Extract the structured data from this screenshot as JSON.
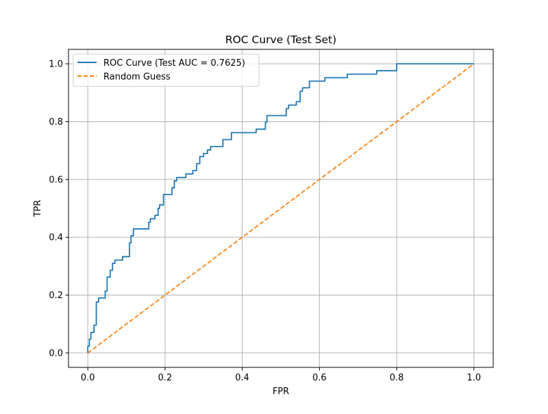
{
  "chart_data": {
    "type": "line",
    "title": "ROC Curve (Test Set)",
    "xlabel": "FPR",
    "ylabel": "TPR",
    "xlim": [
      -0.05,
      1.05
    ],
    "ylim": [
      -0.05,
      1.05
    ],
    "grid": true,
    "legend_position": "upper left",
    "x_ticks": [
      0.0,
      0.2,
      0.4,
      0.6,
      0.8,
      1.0
    ],
    "y_ticks": [
      0.0,
      0.2,
      0.4,
      0.6,
      0.8,
      1.0
    ],
    "x_tick_labels": [
      "0.0",
      "0.2",
      "0.4",
      "0.6",
      "0.8",
      "1.0"
    ],
    "y_tick_labels": [
      "0.0",
      "0.2",
      "0.4",
      "0.6",
      "0.8",
      "1.0"
    ],
    "series": [
      {
        "name": "ROC Curve (Test AUC = 0.7625)",
        "color": "#1f77b4",
        "style": "solid",
        "x": [
          0.0,
          0.0,
          0.004,
          0.004,
          0.008,
          0.008,
          0.016,
          0.016,
          0.022,
          0.022,
          0.028,
          0.028,
          0.045,
          0.045,
          0.05,
          0.05,
          0.058,
          0.058,
          0.064,
          0.064,
          0.07,
          0.07,
          0.09,
          0.09,
          0.108,
          0.108,
          0.112,
          0.112,
          0.118,
          0.118,
          0.158,
          0.158,
          0.162,
          0.162,
          0.174,
          0.174,
          0.182,
          0.182,
          0.186,
          0.186,
          0.196,
          0.196,
          0.218,
          0.218,
          0.224,
          0.224,
          0.23,
          0.23,
          0.254,
          0.254,
          0.272,
          0.272,
          0.282,
          0.282,
          0.29,
          0.29,
          0.3,
          0.3,
          0.31,
          0.31,
          0.318,
          0.318,
          0.35,
          0.35,
          0.372,
          0.372,
          0.436,
          0.436,
          0.46,
          0.46,
          0.464,
          0.464,
          0.514,
          0.514,
          0.52,
          0.52,
          0.54,
          0.54,
          0.55,
          0.55,
          0.556,
          0.556,
          0.574,
          0.574,
          0.614,
          0.614,
          0.672,
          0.672,
          0.748,
          0.748,
          0.8,
          0.8,
          1.0
        ],
        "y": [
          0.0,
          0.024,
          0.024,
          0.048,
          0.048,
          0.071,
          0.071,
          0.096,
          0.096,
          0.176,
          0.176,
          0.19,
          0.19,
          0.214,
          0.214,
          0.262,
          0.262,
          0.286,
          0.286,
          0.31,
          0.31,
          0.321,
          0.321,
          0.333,
          0.333,
          0.381,
          0.381,
          0.405,
          0.405,
          0.429,
          0.429,
          0.452,
          0.452,
          0.464,
          0.464,
          0.476,
          0.476,
          0.5,
          0.5,
          0.512,
          0.512,
          0.548,
          0.548,
          0.571,
          0.571,
          0.595,
          0.595,
          0.607,
          0.607,
          0.619,
          0.619,
          0.631,
          0.631,
          0.655,
          0.655,
          0.679,
          0.679,
          0.69,
          0.69,
          0.702,
          0.702,
          0.714,
          0.714,
          0.738,
          0.738,
          0.762,
          0.762,
          0.774,
          0.774,
          0.798,
          0.798,
          0.821,
          0.821,
          0.845,
          0.845,
          0.857,
          0.857,
          0.869,
          0.869,
          0.905,
          0.905,
          0.917,
          0.917,
          0.94,
          0.94,
          0.952,
          0.952,
          0.964,
          0.964,
          0.976,
          0.976,
          1.0,
          1.0
        ]
      },
      {
        "name": "Random Guess",
        "color": "#ff7f0e",
        "style": "dashed",
        "x": [
          0.0,
          1.0
        ],
        "y": [
          0.0,
          1.0
        ]
      }
    ]
  }
}
